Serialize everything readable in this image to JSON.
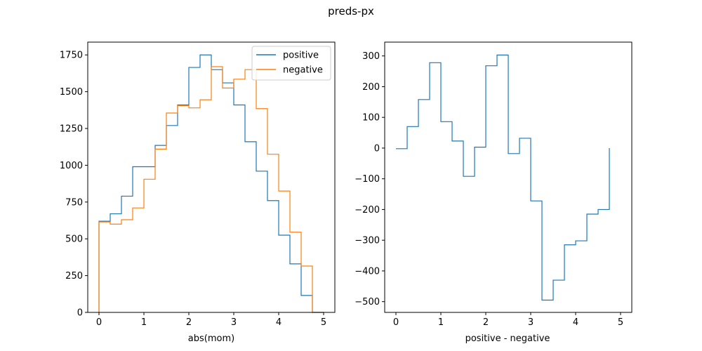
{
  "figure": {
    "suptitle": "preds-px"
  },
  "chart_data": [
    {
      "type": "step-histogram",
      "xlabel": "abs(mom)",
      "ylabel": "",
      "xlim": [
        -0.25,
        5.25
      ],
      "ylim": [
        0,
        1837
      ],
      "xticks": [
        0,
        1,
        2,
        3,
        4,
        5
      ],
      "yticks": [
        0,
        250,
        500,
        750,
        1000,
        1250,
        1500,
        1750
      ],
      "bin_edges": [
        0,
        0.25,
        0.5,
        0.75,
        1.0,
        1.25,
        1.5,
        1.75,
        2.0,
        2.25,
        2.5,
        2.75,
        3.0,
        3.25,
        3.5,
        3.75,
        4.0,
        4.25,
        4.5,
        4.75,
        5.0
      ],
      "legend_position": "top-right",
      "series": [
        {
          "name": "positive",
          "color": "#1f77b4",
          "values": [
            620,
            670,
            790,
            990,
            990,
            1135,
            1270,
            1410,
            1665,
            1750,
            1650,
            1560,
            1410,
            1160,
            960,
            760,
            525,
            330,
            115,
            0
          ]
        },
        {
          "name": "negative",
          "color": "#ff7f0e",
          "values": [
            615,
            600,
            630,
            710,
            905,
            1110,
            1355,
            1405,
            1390,
            1445,
            1670,
            1525,
            1585,
            1650,
            1385,
            1075,
            825,
            545,
            315,
            0
          ]
        }
      ]
    },
    {
      "type": "step",
      "xlabel": "positive - negative",
      "ylabel": "",
      "xlim": [
        -0.25,
        5.25
      ],
      "ylim": [
        -535,
        345
      ],
      "xticks": [
        0,
        1,
        2,
        3,
        4,
        5
      ],
      "yticks": [
        -500,
        -400,
        -300,
        -200,
        -100,
        0,
        100,
        200,
        300
      ],
      "bin_edges": [
        0,
        0.25,
        0.5,
        0.75,
        1.0,
        1.25,
        1.5,
        1.75,
        2.0,
        2.25,
        2.5,
        2.75,
        3.0,
        3.25,
        3.5,
        3.75,
        4.0,
        4.25,
        4.5,
        4.75,
        5.0
      ],
      "series": [
        {
          "name": "positive - negative",
          "color": "#1f77b4",
          "values": [
            -2,
            70,
            158,
            278,
            86,
            23,
            -92,
            3,
            268,
            303,
            -18,
            32,
            -172,
            -495,
            -430,
            -315,
            -302,
            -215,
            -200,
            0
          ]
        }
      ]
    }
  ]
}
